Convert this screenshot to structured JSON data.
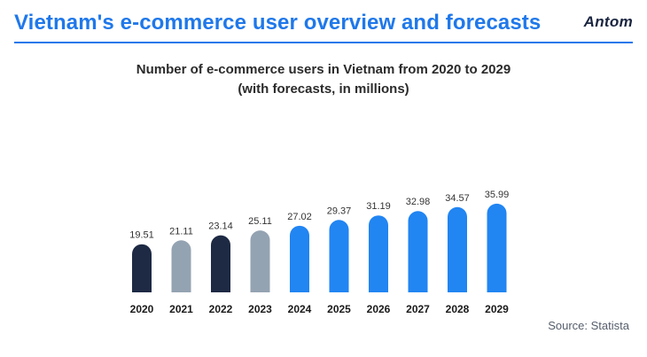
{
  "header": {
    "title": "Vietnam's e-commerce user overview and forecasts",
    "logo_text": "Antom"
  },
  "chart_data": {
    "type": "bar",
    "title": "Number of e-commerce users in Vietnam from 2020 to 2029",
    "subtitle": "(with forecasts, in millions)",
    "categories": [
      "2020",
      "2021",
      "2022",
      "2023",
      "2024",
      "2025",
      "2026",
      "2027",
      "2028",
      "2029"
    ],
    "values": [
      19.51,
      21.11,
      23.14,
      25.11,
      27.02,
      29.37,
      31.19,
      32.98,
      34.57,
      35.99
    ],
    "bar_colors": [
      "#1e2a44",
      "#94a3b2",
      "#1e2a44",
      "#94a3b2",
      "#2185f2",
      "#2185f2",
      "#2185f2",
      "#2185f2",
      "#2185f2",
      "#2185f2"
    ],
    "grid": false,
    "legend": "none",
    "ylim": [
      0,
      36
    ]
  },
  "source": "Source: Statista"
}
